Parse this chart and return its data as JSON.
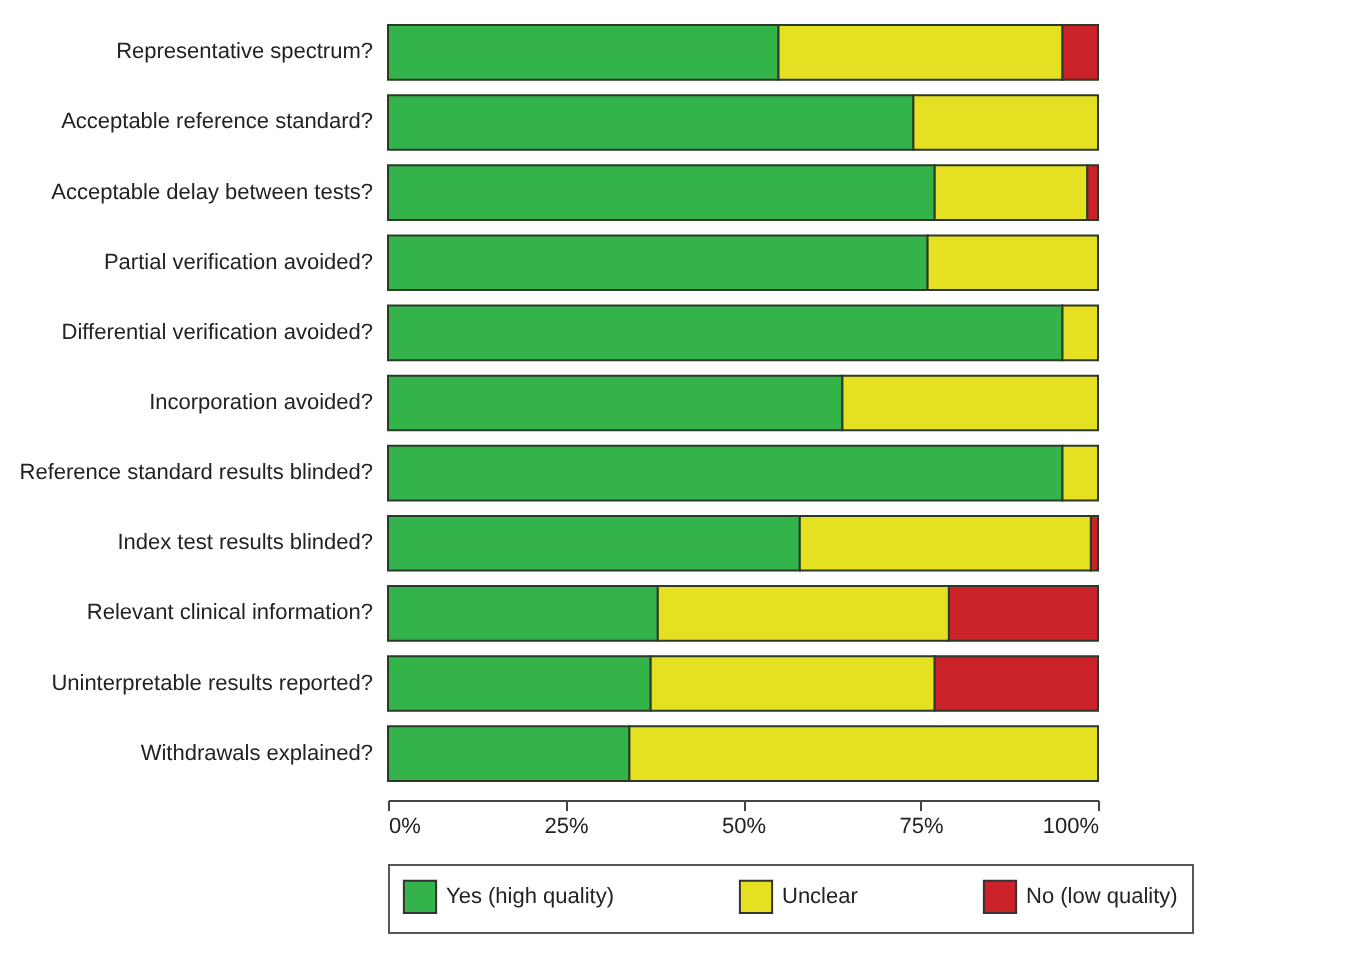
{
  "chart_data": {
    "type": "bar",
    "orientation": "horizontal",
    "stacked": true,
    "categories": [
      "Representative spectrum?",
      "Acceptable reference standard?",
      "Acceptable delay between tests?",
      "Partial verification avoided?",
      "Differential verification avoided?",
      "Incorporation avoided?",
      "Reference standard results blinded?",
      "Index test results blinded?",
      "Relevant clinical information?",
      "Uninterpretable results reported?",
      "Withdrawals explained?"
    ],
    "series": [
      {
        "name": "Yes (high quality)",
        "color": "#33b34a",
        "values": [
          55,
          74,
          77,
          76,
          95,
          64,
          95,
          58,
          38,
          37,
          34
        ]
      },
      {
        "name": "Unclear",
        "color": "#e6e022",
        "values": [
          40,
          26,
          21.5,
          24,
          5,
          36,
          5,
          41,
          41,
          40,
          66
        ]
      },
      {
        "name": "No (low quality)",
        "color": "#cc2229",
        "values": [
          5,
          null,
          1.5,
          null,
          null,
          null,
          null,
          1,
          21,
          23,
          null
        ]
      }
    ],
    "xlim": [
      0,
      100
    ],
    "xticks": [
      {
        "value": 0,
        "label": "0%"
      },
      {
        "value": 25,
        "label": "25%"
      },
      {
        "value": 50,
        "label": "50%"
      },
      {
        "value": 75,
        "label": "75%"
      },
      {
        "value": 100,
        "label": "100%"
      }
    ],
    "grid": false,
    "legend": "bottom"
  }
}
